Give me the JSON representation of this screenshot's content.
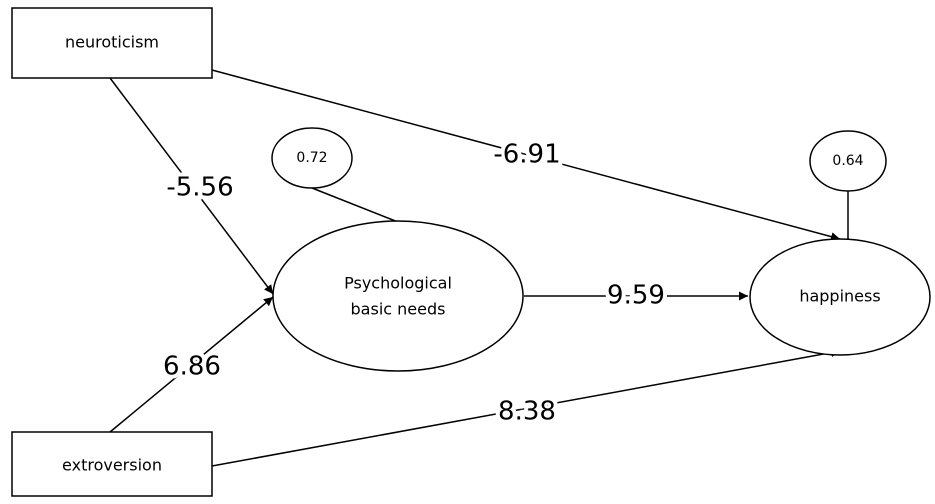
{
  "nodes": [
    {
      "label": "neuroticism"
    },
    {
      "label": "extroversion"
    },
    {
      "label": [
        "Psychological",
        "basic needs"
      ]
    },
    {
      "label": "happiness"
    },
    {
      "label": 0.72
    },
    {
      "label": 0.64
    }
  ],
  "edges": [
    {
      "label": -5.56
    },
    {
      "label": 6.86
    },
    {
      "label": -6.91
    },
    {
      "label": 9.59
    },
    {
      "label": 8.38
    }
  ]
}
